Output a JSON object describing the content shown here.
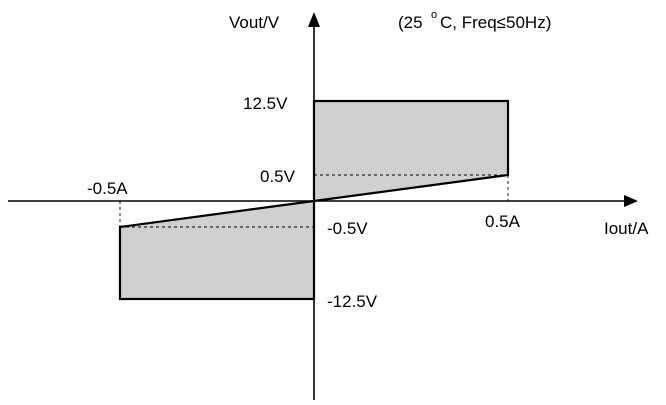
{
  "diagram": {
    "y_axis_label": "Vout/V",
    "x_axis_label": "Iout/A",
    "condition": {
      "prefix": "(25",
      "degree": "o",
      "suffix": "C, Freq≤50Hz)"
    },
    "tick_labels": {
      "v_pos_high": "12.5V",
      "v_pos_low": "0.5V",
      "v_neg_low": "-0.5V",
      "v_neg_high": "-12.5V",
      "i_pos": "0.5A",
      "i_neg": "-0.5A"
    },
    "colors": {
      "region_fill": "#d0d0d0",
      "outline": "#000000",
      "axis": "#000000"
    }
  }
}
